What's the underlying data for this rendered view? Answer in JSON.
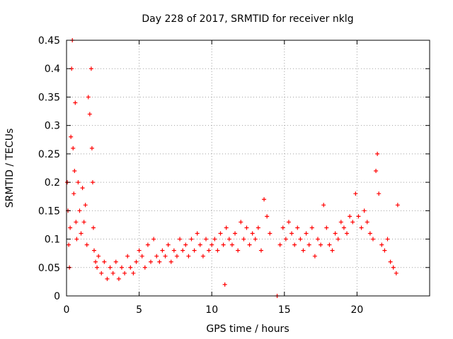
{
  "chart_data": {
    "type": "scatter",
    "title": "Day 228 of 2017, SRMTID for receiver nklg",
    "xlabel": "GPS time / hours",
    "ylabel": "SRMTID / TECUs",
    "xlim": [
      0,
      25
    ],
    "ylim": [
      0,
      0.45
    ],
    "xticks": [
      0,
      5,
      10,
      15,
      20
    ],
    "xtick_labels": [
      "0",
      "5",
      "10",
      "15",
      "20"
    ],
    "yticks": [
      0,
      0.05,
      0.1,
      0.15,
      0.2,
      0.25,
      0.3,
      0.35,
      0.4,
      0.45
    ],
    "ytick_labels": [
      "0",
      "0.05",
      "0.1",
      "0.15",
      "0.2",
      "0.25",
      "0.3",
      "0.35",
      "0.4",
      "0.45"
    ],
    "grid": true,
    "marker": "+",
    "color": "#ff0000",
    "series": [
      {
        "name": "SRMTID",
        "x": [
          0.05,
          0.1,
          0.15,
          0.2,
          0.25,
          0.3,
          0.35,
          0.4,
          0.45,
          0.5,
          0.55,
          0.6,
          0.65,
          0.7,
          0.8,
          0.9,
          1.0,
          1.1,
          1.2,
          1.3,
          1.4,
          1.5,
          1.6,
          1.7,
          1.75,
          1.8,
          1.85,
          1.9,
          2.0,
          2.1,
          2.2,
          2.4,
          2.6,
          2.8,
          3.0,
          3.2,
          3.4,
          3.6,
          3.8,
          4.0,
          4.2,
          4.4,
          4.6,
          4.8,
          5.0,
          5.2,
          5.4,
          5.6,
          5.8,
          6.0,
          6.2,
          6.4,
          6.6,
          6.8,
          7.0,
          7.2,
          7.4,
          7.6,
          7.8,
          8.0,
          8.2,
          8.4,
          8.6,
          8.8,
          9.0,
          9.2,
          9.4,
          9.6,
          9.8,
          10.0,
          10.2,
          10.4,
          10.6,
          10.8,
          10.9,
          11.0,
          11.2,
          11.4,
          11.6,
          11.8,
          12.0,
          12.2,
          12.4,
          12.6,
          12.8,
          13.0,
          13.2,
          13.4,
          13.6,
          13.8,
          14.0,
          14.5,
          14.7,
          14.9,
          15.1,
          15.3,
          15.5,
          15.7,
          15.9,
          16.1,
          16.3,
          16.5,
          16.7,
          16.9,
          17.1,
          17.3,
          17.5,
          17.7,
          17.9,
          18.1,
          18.3,
          18.5,
          18.7,
          18.9,
          19.1,
          19.3,
          19.5,
          19.7,
          19.9,
          20.1,
          20.3,
          20.5,
          20.7,
          20.9,
          21.1,
          21.3,
          21.4,
          21.5,
          21.7,
          21.9,
          22.1,
          22.3,
          22.5,
          22.7,
          22.8
        ],
        "y": [
          0.2,
          0.15,
          0.09,
          0.05,
          0.12,
          0.28,
          0.4,
          0.45,
          0.26,
          0.18,
          0.22,
          0.34,
          0.13,
          0.1,
          0.2,
          0.15,
          0.11,
          0.19,
          0.13,
          0.16,
          0.09,
          0.35,
          0.32,
          0.4,
          0.26,
          0.2,
          0.12,
          0.08,
          0.06,
          0.05,
          0.07,
          0.04,
          0.06,
          0.03,
          0.05,
          0.04,
          0.06,
          0.03,
          0.05,
          0.04,
          0.07,
          0.05,
          0.04,
          0.06,
          0.08,
          0.07,
          0.05,
          0.09,
          0.06,
          0.1,
          0.07,
          0.06,
          0.08,
          0.07,
          0.09,
          0.06,
          0.08,
          0.07,
          0.1,
          0.08,
          0.09,
          0.07,
          0.1,
          0.08,
          0.11,
          0.09,
          0.07,
          0.1,
          0.08,
          0.09,
          0.1,
          0.08,
          0.11,
          0.09,
          0.02,
          0.12,
          0.1,
          0.09,
          0.11,
          0.08,
          0.13,
          0.1,
          0.12,
          0.09,
          0.11,
          0.1,
          0.12,
          0.08,
          0.17,
          0.14,
          0.11,
          0.0,
          0.09,
          0.12,
          0.1,
          0.13,
          0.11,
          0.09,
          0.12,
          0.1,
          0.08,
          0.11,
          0.09,
          0.12,
          0.07,
          0.1,
          0.09,
          0.16,
          0.12,
          0.09,
          0.08,
          0.11,
          0.1,
          0.13,
          0.12,
          0.11,
          0.14,
          0.13,
          0.18,
          0.14,
          0.12,
          0.15,
          0.13,
          0.11,
          0.1,
          0.22,
          0.25,
          0.18,
          0.09,
          0.08,
          0.1,
          0.06,
          0.05,
          0.04,
          0.16
        ]
      }
    ]
  }
}
